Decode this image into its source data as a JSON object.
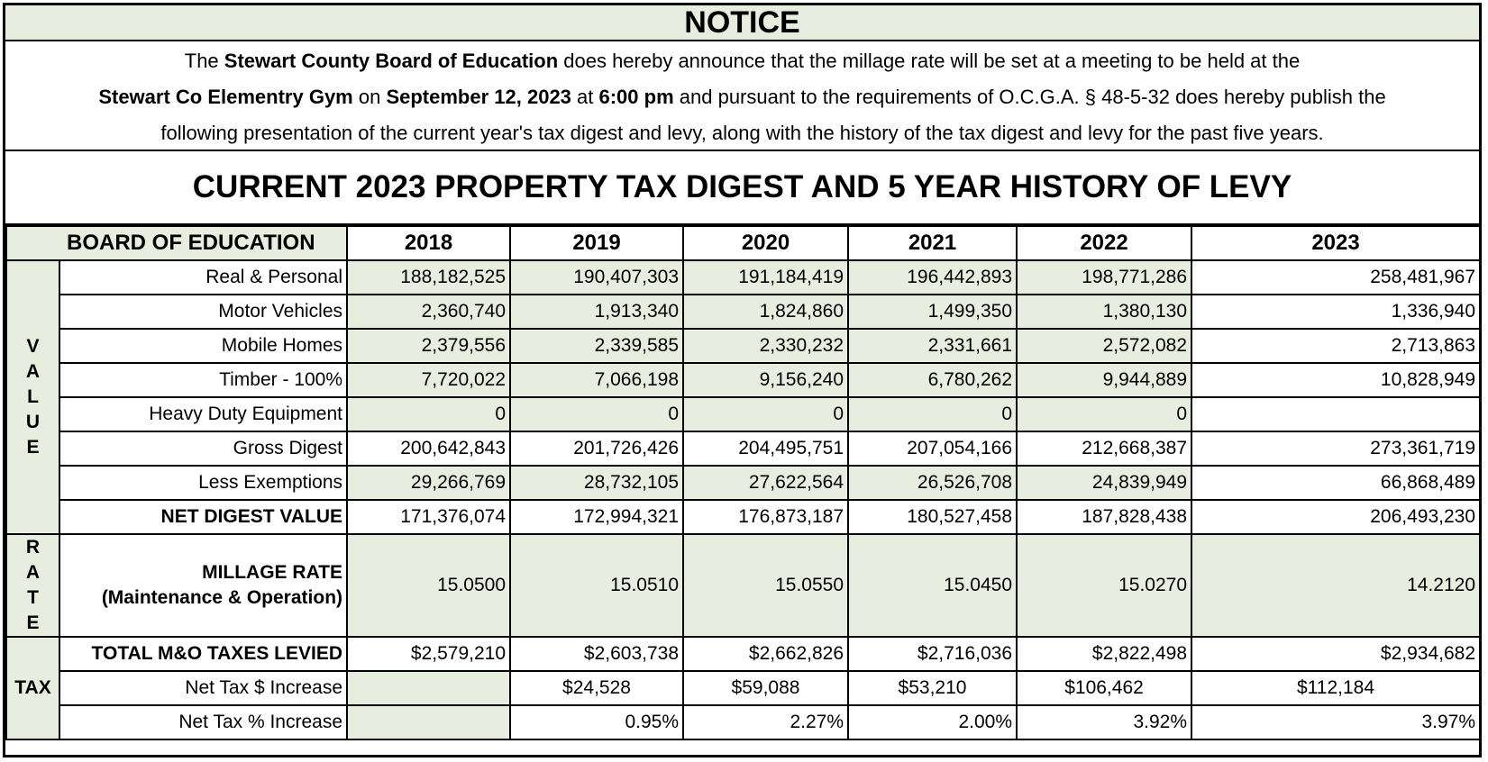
{
  "notice": {
    "title": "NOTICE",
    "line1_a": "The ",
    "line1_b": "Stewart County Board of Education",
    "line1_c": " does hereby announce that the millage rate will be set at a meeting to be held at the",
    "line2_a": "Stewart Co Elementry Gym",
    "line2_b": " on ",
    "line2_c": "September 12, 2023",
    "line2_d": " at ",
    "line2_e": "6:00 pm",
    "line2_f": " and pursuant to the requirements of O.C.G.A. § 48-5-32 does hereby publish the",
    "line3": "following presentation of the current year's tax digest and levy, along with the history of the tax digest and levy for the past five years."
  },
  "heading": "CURRENT 2023 PROPERTY TAX DIGEST AND 5 YEAR HISTORY OF LEVY",
  "table": {
    "corner": "BOARD OF EDUCATION",
    "years": [
      "2018",
      "2019",
      "2020",
      "2021",
      "2022",
      "2023"
    ],
    "side_value": "V\nA\nL\nU\nE",
    "side_rate": "R\nA\nT\nE",
    "side_tax": "TAX",
    "rows": [
      {
        "label": "Real & Personal",
        "values": [
          "188,182,525",
          "190,407,303",
          "191,184,419",
          "196,442,893",
          "198,771,286",
          "258,481,967"
        ]
      },
      {
        "label": "Motor Vehicles",
        "values": [
          "2,360,740",
          "1,913,340",
          "1,824,860",
          "1,499,350",
          "1,380,130",
          "1,336,940"
        ]
      },
      {
        "label": "Mobile Homes",
        "values": [
          "2,379,556",
          "2,339,585",
          "2,330,232",
          "2,331,661",
          "2,572,082",
          "2,713,863"
        ]
      },
      {
        "label": "Timber - 100%",
        "values": [
          "7,720,022",
          "7,066,198",
          "9,156,240",
          "6,780,262",
          "9,944,889",
          "10,828,949"
        ]
      },
      {
        "label": "Heavy Duty Equipment",
        "values": [
          "0",
          "0",
          "0",
          "0",
          "0",
          ""
        ]
      },
      {
        "label": "Gross Digest",
        "values": [
          "200,642,843",
          "201,726,426",
          "204,495,751",
          "207,054,166",
          "212,668,387",
          "273,361,719"
        ]
      },
      {
        "label": "Less Exemptions",
        "values": [
          "29,266,769",
          "28,732,105",
          "27,622,564",
          "26,526,708",
          "24,839,949",
          "66,868,489"
        ]
      },
      {
        "label": "NET DIGEST VALUE",
        "values": [
          "171,376,074",
          "172,994,321",
          "176,873,187",
          "180,527,458",
          "187,828,438",
          "206,493,230"
        ]
      }
    ],
    "rate": {
      "label1": "MILLAGE RATE",
      "label2": "(Maintenance & Operation)",
      "values": [
        "15.0500",
        "15.0510",
        "15.0550",
        "15.0450",
        "15.0270",
        "14.2120"
      ]
    },
    "tax_rows": [
      {
        "label": "TOTAL M&O TAXES LEVIED",
        "values": [
          "$2,579,210",
          "$2,603,738",
          "$2,662,826",
          "$2,716,036",
          "$2,822,498",
          "$2,934,682"
        ]
      },
      {
        "label": "Net Tax $ Increase",
        "values": [
          "",
          "$24,528",
          "$59,088",
          "$53,210",
          "$106,462",
          "$112,184"
        ]
      },
      {
        "label": "Net Tax % Increase",
        "values": [
          "",
          "0.95%",
          "2.27%",
          "2.00%",
          "3.92%",
          "3.97%"
        ]
      }
    ]
  }
}
